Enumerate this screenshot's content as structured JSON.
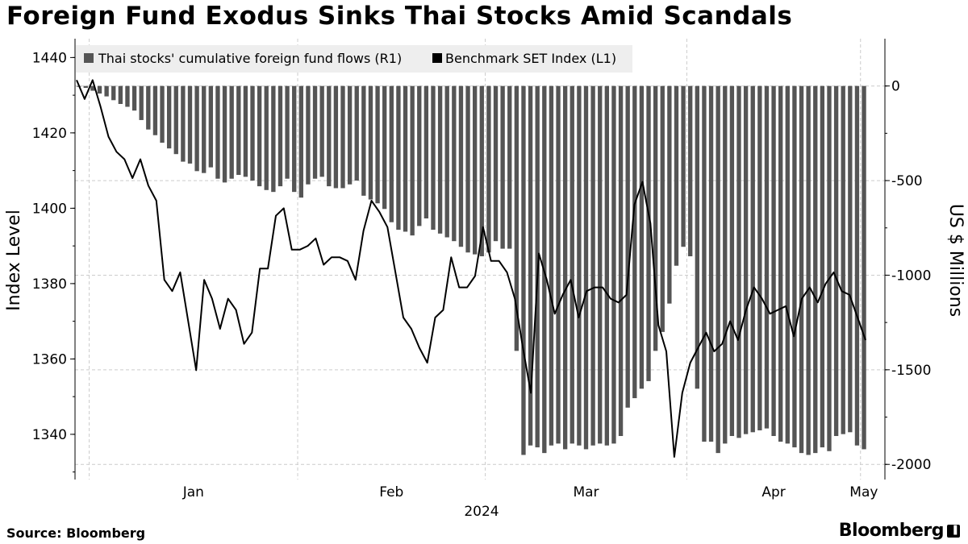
{
  "title": "Foreign Fund Exodus Sinks Thai Stocks Amid Scandals",
  "source": "Source: Bloomberg",
  "brand": "Bloomberg",
  "colors": {
    "bars": "#555555",
    "line": "#000000",
    "grid": "#cccccc",
    "legend_bg": "#eeeeee"
  },
  "chart_data": {
    "type": "bar+line",
    "legend": [
      {
        "name": "Thai stocks' cumulative foreign fund flows (R1)",
        "swatch": "bar"
      },
      {
        "name": "Benchmark SET Index (L1)",
        "swatch": "line"
      }
    ],
    "legend_position": "top-left",
    "y_left": {
      "label": "Index Level",
      "min": 1328,
      "max": 1445,
      "ticks": [
        1340,
        1360,
        1380,
        1400,
        1420,
        1440
      ]
    },
    "y_right": {
      "label": "US $ Millions",
      "min": -2080,
      "max": 250,
      "ticks": [
        0,
        -500,
        -1000,
        -1500,
        -2000
      ]
    },
    "x_axis": {
      "months": [
        "Jan",
        "Feb",
        "Mar",
        "Apr",
        "May"
      ],
      "year_label": "2024",
      "month_boundaries_index": [
        2,
        32,
        59,
        88,
        113
      ]
    },
    "grid": true,
    "foreign_flows_musd": [
      0,
      -10,
      -25,
      -40,
      -55,
      -75,
      -95,
      -110,
      -130,
      -180,
      -230,
      -260,
      -300,
      -330,
      -360,
      -400,
      -410,
      -450,
      -460,
      -430,
      -490,
      -510,
      -490,
      -470,
      -480,
      -500,
      -530,
      -550,
      -560,
      -530,
      -490,
      -560,
      -590,
      -520,
      -490,
      -480,
      -530,
      -540,
      -540,
      -520,
      -500,
      -580,
      -600,
      -620,
      -650,
      -720,
      -760,
      -770,
      -790,
      -740,
      -700,
      -760,
      -780,
      -800,
      -820,
      -850,
      -880,
      -890,
      -900,
      -880,
      -820,
      -860,
      -860,
      -1400,
      -1950,
      -1900,
      -1910,
      -1940,
      -1900,
      -1890,
      -1920,
      -1890,
      -1900,
      -1920,
      -1900,
      -1890,
      -1900,
      -1890,
      -1850,
      -1700,
      -1650,
      -1600,
      -1560,
      -1400,
      -1300,
      -1150,
      -950,
      -850,
      -900,
      -1600,
      -1880,
      -1880,
      -1940,
      -1890,
      -1850,
      -1860,
      -1840,
      -1830,
      -1820,
      -1810,
      -1850,
      -1880,
      -1890,
      -1910,
      -1940,
      -1950,
      -1940,
      -1910,
      -1930,
      -1850,
      -1840,
      -1830,
      -1900,
      -1920
    ],
    "set_index": [
      1434,
      1429,
      1434,
      1427,
      1419,
      1415,
      1413,
      1408,
      1413,
      1406,
      1402,
      1381,
      1378,
      1383,
      1370,
      1357,
      1381,
      1376,
      1368,
      1376,
      1373,
      1364,
      1367,
      1384,
      1384,
      1398,
      1400,
      1389,
      1389,
      1390,
      1392,
      1385,
      1387,
      1387,
      1386,
      1381,
      1394,
      1402,
      1399,
      1395,
      1383,
      1371,
      1368,
      1363,
      1359,
      1371,
      1373,
      1387,
      1379,
      1379,
      1382,
      1395,
      1386,
      1386,
      1383,
      1376,
      1363,
      1351,
      1388,
      1381,
      1372,
      1377,
      1381,
      1371,
      1378,
      1379,
      1379,
      1376,
      1375,
      1377,
      1401,
      1407,
      1396,
      1369,
      1362,
      1334,
      1351,
      1359,
      1363,
      1367,
      1362,
      1364,
      1370,
      1365,
      1373,
      1379,
      1376,
      1372,
      1373,
      1374,
      1366,
      1376,
      1379,
      1375,
      1380,
      1383,
      1378,
      1377,
      1371,
      1365
    ],
    "set_index_note_points": "daily closes"
  }
}
